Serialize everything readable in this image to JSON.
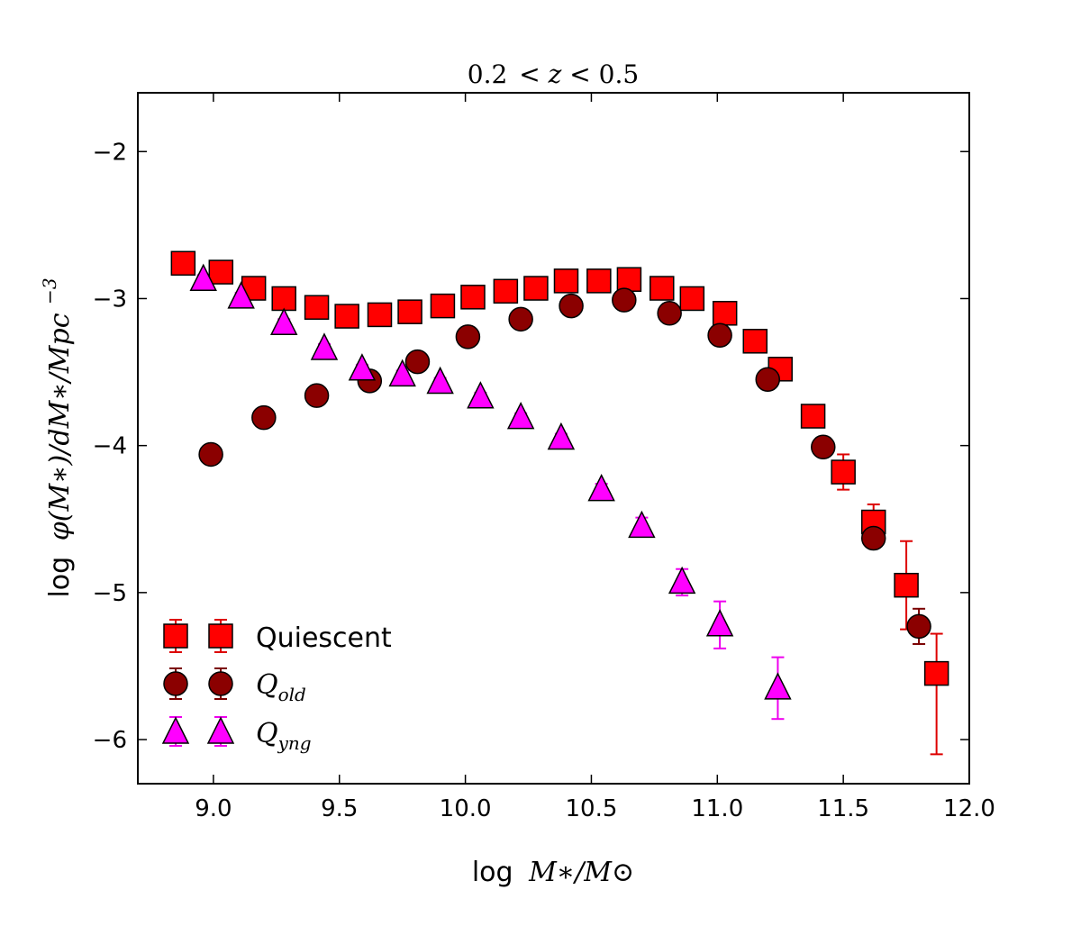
{
  "chart_data": {
    "type": "scatter",
    "title": "0.2 < z < 0.5",
    "title_parts": {
      "left": "0.2",
      "lt1": "<",
      "var": "z",
      "lt2": "<",
      "right": "0.5"
    },
    "xlabel_prefix": "log",
    "xlabel_math": "M∗/M⊙",
    "ylabel_prefix": "log",
    "ylabel_math": "φ(M∗)/dM∗/Mpc",
    "ylabel_exp": "−3",
    "xlim": [
      8.7,
      12.0
    ],
    "ylim": [
      -6.3,
      -1.6
    ],
    "xticks": [
      9.0,
      9.5,
      10.0,
      10.5,
      11.0,
      11.5,
      12.0
    ],
    "xtick_labels": [
      "9.0",
      "9.5",
      "10.0",
      "10.5",
      "11.0",
      "11.5",
      "12.0"
    ],
    "yticks": [
      -2,
      -3,
      -4,
      -5,
      -6
    ],
    "ytick_labels": [
      "−2",
      "−3",
      "−4",
      "−5",
      "−6"
    ],
    "legend_position": "lower-left",
    "series": [
      {
        "name": "Quiescent",
        "legend_label": "Quiescent",
        "marker": "square",
        "color": "#ff0000",
        "errcolor": "#dd0000",
        "x": [
          8.88,
          9.03,
          9.16,
          9.28,
          9.41,
          9.53,
          9.66,
          9.78,
          9.91,
          10.03,
          10.16,
          10.28,
          10.4,
          10.53,
          10.65,
          10.78,
          10.9,
          11.03,
          11.15,
          11.25,
          11.38,
          11.5,
          11.62,
          11.75,
          11.87
        ],
        "y": [
          -2.76,
          -2.82,
          -2.93,
          -3.0,
          -3.06,
          -3.12,
          -3.11,
          -3.09,
          -3.05,
          -2.99,
          -2.95,
          -2.93,
          -2.88,
          -2.88,
          -2.87,
          -2.93,
          -3.0,
          -3.1,
          -3.29,
          -3.48,
          -3.8,
          -4.18,
          -4.52,
          -4.95,
          -5.55
        ],
        "err": [
          0.05,
          0.04,
          0.03,
          0.03,
          0.03,
          0.03,
          0.03,
          0.03,
          0.03,
          0.03,
          0.03,
          0.03,
          0.03,
          0.03,
          0.03,
          0.03,
          0.03,
          0.03,
          0.03,
          0.04,
          0.06,
          0.12,
          0.12,
          0.3,
          0.27
        ],
        "err_down": [
          0.05,
          0.04,
          0.03,
          0.03,
          0.03,
          0.03,
          0.03,
          0.03,
          0.03,
          0.03,
          0.03,
          0.03,
          0.03,
          0.03,
          0.03,
          0.03,
          0.03,
          0.03,
          0.03,
          0.04,
          0.06,
          0.12,
          0.12,
          0.3,
          0.55
        ]
      },
      {
        "name": "Q_old",
        "legend_label": "Q",
        "legend_sub": "old",
        "marker": "circle",
        "color": "#8b0000",
        "errcolor": "#7a0000",
        "x": [
          8.99,
          9.2,
          9.41,
          9.62,
          9.81,
          10.01,
          10.22,
          10.42,
          10.63,
          10.81,
          11.01,
          11.2,
          11.42,
          11.62,
          11.8
        ],
        "y": [
          -4.06,
          -3.81,
          -3.66,
          -3.56,
          -3.43,
          -3.26,
          -3.14,
          -3.05,
          -3.01,
          -3.1,
          -3.25,
          -3.55,
          -4.01,
          -4.63,
          -5.23
        ],
        "err": [
          0.03,
          0.02,
          0.02,
          0.02,
          0.02,
          0.02,
          0.02,
          0.02,
          0.02,
          0.02,
          0.02,
          0.02,
          0.04,
          0.06,
          0.12
        ]
      },
      {
        "name": "Q_yng",
        "legend_label": "Q",
        "legend_sub": "yng",
        "marker": "triangle",
        "color": "#ff00ff",
        "errcolor": "#ee00ee",
        "x": [
          8.96,
          9.11,
          9.28,
          9.44,
          9.59,
          9.75,
          9.9,
          10.06,
          10.22,
          10.38,
          10.54,
          10.7,
          10.86,
          11.01,
          11.24
        ],
        "y": [
          -2.87,
          -2.99,
          -3.17,
          -3.34,
          -3.48,
          -3.52,
          -3.57,
          -3.67,
          -3.81,
          -3.95,
          -4.3,
          -4.55,
          -4.93,
          -5.22,
          -5.65
        ],
        "err": [
          0.03,
          0.03,
          0.03,
          0.03,
          0.03,
          0.03,
          0.03,
          0.03,
          0.03,
          0.03,
          0.04,
          0.06,
          0.09,
          0.16,
          0.21
        ]
      }
    ]
  }
}
